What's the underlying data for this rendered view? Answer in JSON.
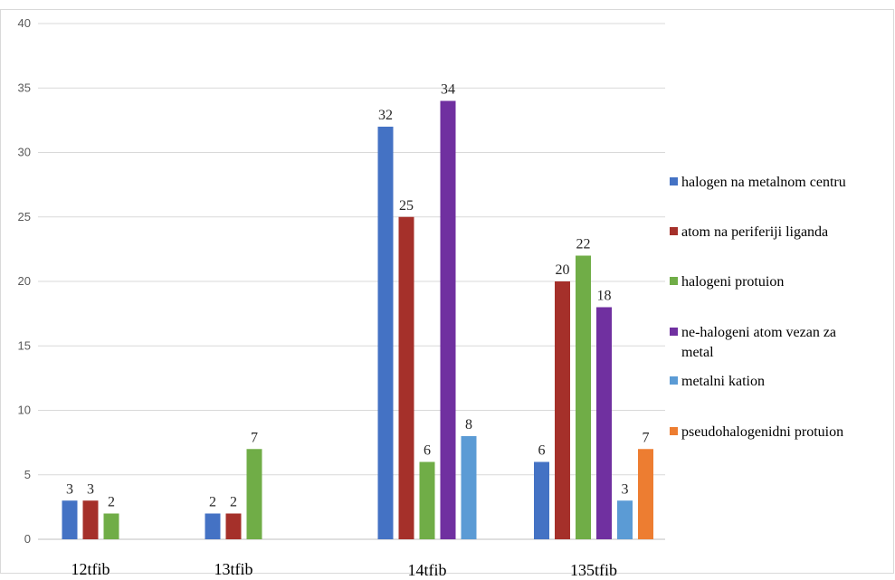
{
  "colors": {
    "background": "#ffffff",
    "border": "#d9d9d9",
    "gridline": "#d9d9d9",
    "axis": "#bfbfbf"
  },
  "chart_data": {
    "type": "bar",
    "title": "",
    "xlabel": "",
    "ylabel": "",
    "ylim": [
      0,
      40
    ],
    "yticks": [
      0,
      5,
      10,
      15,
      20,
      25,
      30,
      35,
      40
    ],
    "grid": true,
    "legend_position": "right",
    "categories": [
      "12tfib",
      "13tfib",
      "14tfib",
      "135tfib"
    ],
    "series": [
      {
        "name": "halogen na metalnom centru",
        "color": "#4472C4",
        "values": [
          3,
          2,
          32,
          6
        ]
      },
      {
        "name": "atom na periferiji liganda",
        "color": "#A5302A",
        "values": [
          3,
          2,
          25,
          20
        ]
      },
      {
        "name": "halogeni protuion",
        "color": "#70AD47",
        "values": [
          2,
          7,
          6,
          22
        ]
      },
      {
        "name": "ne-halogeni atom vezan za metal",
        "legend_lines": [
          "ne-halogeni atom vezan za",
          "metal"
        ],
        "color": "#7030A0",
        "values": [
          null,
          null,
          34,
          18
        ]
      },
      {
        "name": "metalni kation",
        "color": "#5B9BD5",
        "values": [
          null,
          null,
          8,
          3
        ]
      },
      {
        "name": "pseudohalogenidni protuion",
        "color": "#ED7D31",
        "values": [
          null,
          null,
          null,
          7
        ]
      }
    ]
  }
}
